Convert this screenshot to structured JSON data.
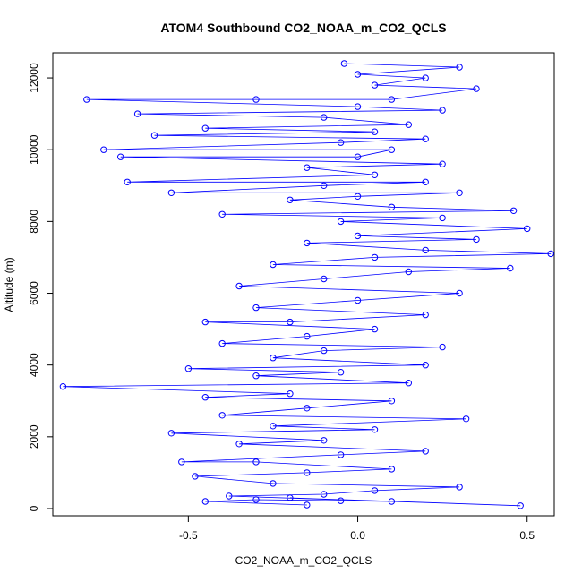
{
  "chart_data": {
    "type": "scatter",
    "title": "ATOM4 Southbound CO2_NOAA_m_CO2_QCLS",
    "xlabel": "CO2_NOAA_m_CO2_QCLS",
    "ylabel": "Altitude (m)",
    "xlim": [
      -0.9,
      0.58
    ],
    "ylim": [
      -200,
      12700
    ],
    "xticks": [
      -0.5,
      0.0,
      0.5
    ],
    "xtick_labels": [
      "-0.5",
      "0.0",
      "0.5"
    ],
    "yticks": [
      0,
      2000,
      4000,
      6000,
      8000,
      10000,
      12000
    ],
    "ytick_labels": [
      "0",
      "2000",
      "4000",
      "6000",
      "8000",
      "10000",
      "12000"
    ],
    "grid": false,
    "color": "#0000ff",
    "marker": "open-circle",
    "connected": true,
    "series": [
      {
        "name": "CO2_NOAA_m_CO2_QCLS",
        "points": [
          [
            -0.15,
            100
          ],
          [
            -0.45,
            200
          ],
          [
            -0.3,
            250
          ],
          [
            -0.05,
            220
          ],
          [
            0.1,
            200
          ],
          [
            -0.2,
            300
          ],
          [
            0.48,
            80
          ],
          [
            -0.38,
            350
          ],
          [
            -0.1,
            400
          ],
          [
            0.05,
            500
          ],
          [
            0.3,
            600
          ],
          [
            -0.25,
            700
          ],
          [
            -0.48,
            900
          ],
          [
            -0.15,
            1000
          ],
          [
            0.1,
            1100
          ],
          [
            -0.3,
            1300
          ],
          [
            -0.52,
            1300
          ],
          [
            -0.05,
            1500
          ],
          [
            0.2,
            1600
          ],
          [
            -0.35,
            1800
          ],
          [
            -0.1,
            1900
          ],
          [
            -0.55,
            2100
          ],
          [
            0.05,
            2200
          ],
          [
            -0.25,
            2300
          ],
          [
            0.32,
            2500
          ],
          [
            -0.4,
            2600
          ],
          [
            -0.15,
            2800
          ],
          [
            0.1,
            3000
          ],
          [
            -0.45,
            3100
          ],
          [
            -0.2,
            3200
          ],
          [
            -0.87,
            3400
          ],
          [
            0.15,
            3500
          ],
          [
            -0.3,
            3700
          ],
          [
            -0.05,
            3800
          ],
          [
            -0.5,
            3900
          ],
          [
            0.2,
            4000
          ],
          [
            -0.25,
            4200
          ],
          [
            -0.1,
            4400
          ],
          [
            0.25,
            4500
          ],
          [
            -0.4,
            4600
          ],
          [
            -0.15,
            4800
          ],
          [
            0.05,
            5000
          ],
          [
            -0.45,
            5200
          ],
          [
            -0.2,
            5200
          ],
          [
            0.2,
            5400
          ],
          [
            -0.3,
            5600
          ],
          [
            0.0,
            5800
          ],
          [
            0.3,
            6000
          ],
          [
            -0.35,
            6200
          ],
          [
            -0.1,
            6400
          ],
          [
            0.15,
            6600
          ],
          [
            0.45,
            6700
          ],
          [
            -0.25,
            6800
          ],
          [
            0.05,
            7000
          ],
          [
            0.57,
            7100
          ],
          [
            0.2,
            7200
          ],
          [
            -0.15,
            7400
          ],
          [
            0.35,
            7500
          ],
          [
            0.0,
            7600
          ],
          [
            0.5,
            7800
          ],
          [
            -0.05,
            8000
          ],
          [
            0.25,
            8100
          ],
          [
            -0.4,
            8200
          ],
          [
            0.46,
            8300
          ],
          [
            0.1,
            8400
          ],
          [
            -0.2,
            8600
          ],
          [
            0.0,
            8700
          ],
          [
            0.3,
            8800
          ],
          [
            -0.55,
            8800
          ],
          [
            -0.1,
            9000
          ],
          [
            0.2,
            9100
          ],
          [
            -0.68,
            9100
          ],
          [
            0.05,
            9300
          ],
          [
            -0.15,
            9500
          ],
          [
            0.25,
            9600
          ],
          [
            -0.7,
            9800
          ],
          [
            0.0,
            9800
          ],
          [
            0.1,
            10000
          ],
          [
            -0.75,
            10000
          ],
          [
            -0.05,
            10200
          ],
          [
            0.2,
            10300
          ],
          [
            -0.6,
            10400
          ],
          [
            0.05,
            10500
          ],
          [
            -0.45,
            10600
          ],
          [
            0.15,
            10700
          ],
          [
            -0.1,
            10900
          ],
          [
            -0.65,
            11000
          ],
          [
            0.25,
            11100
          ],
          [
            0.0,
            11200
          ],
          [
            -0.8,
            11400
          ],
          [
            -0.3,
            11400
          ],
          [
            0.1,
            11400
          ],
          [
            0.35,
            11700
          ],
          [
            0.05,
            11800
          ],
          [
            0.2,
            12000
          ],
          [
            0.0,
            12100
          ],
          [
            0.3,
            12300
          ],
          [
            -0.04,
            12400
          ]
        ]
      }
    ]
  }
}
